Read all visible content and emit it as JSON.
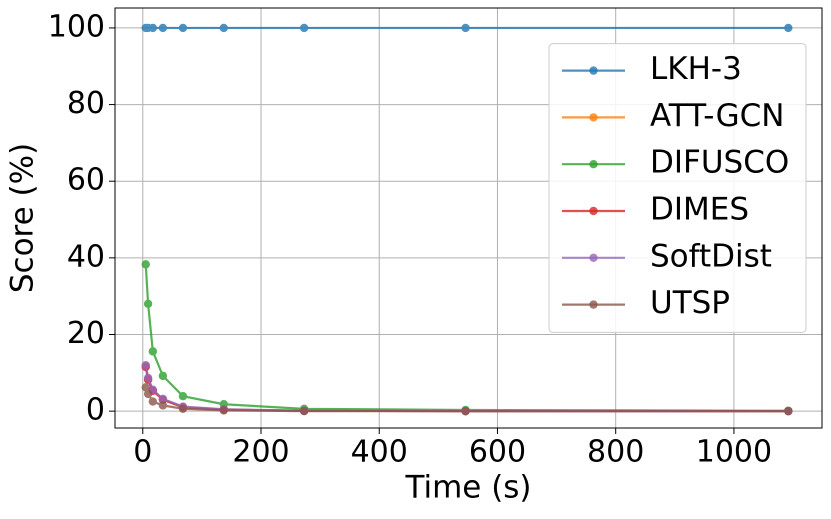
{
  "chart_data": {
    "type": "line",
    "xlabel": "Time (s)",
    "ylabel": "Score (%)",
    "x": [
      5,
      9,
      17,
      34,
      68,
      137,
      273,
      546,
      1092
    ],
    "series": [
      {
        "name": "LKH-3",
        "color": "#1f77b4",
        "values": [
          100,
          100,
          100,
          100,
          100,
          100,
          100,
          100,
          100
        ]
      },
      {
        "name": "ATT-GCN",
        "color": "#ff7f0e",
        "values": [
          11.8,
          8.4,
          5.4,
          3.0,
          1.0,
          0.4,
          0.1,
          0,
          0
        ]
      },
      {
        "name": "DIFUSCO",
        "color": "#2ca02c",
        "values": [
          38.3,
          28,
          15.6,
          9.2,
          3.9,
          1.8,
          0.6,
          0.3,
          0.1
        ]
      },
      {
        "name": "DIMES",
        "color": "#d62728",
        "values": [
          11.5,
          8.2,
          5.3,
          3.0,
          1.0,
          0.4,
          0.1,
          0,
          0
        ]
      },
      {
        "name": "SoftDist",
        "color": "#9467bd",
        "values": [
          12,
          8.7,
          5.6,
          3.2,
          1.2,
          0.5,
          0.1,
          0,
          0
        ]
      },
      {
        "name": "UTSP",
        "color": "#8c564b",
        "values": [
          6.2,
          4.5,
          2.5,
          1.5,
          0.6,
          0.2,
          0,
          0,
          0
        ]
      }
    ],
    "xlim": [
      -47,
      1149
    ],
    "ylim": [
      -4.4,
      105.2
    ],
    "xticks": [
      0,
      200,
      400,
      600,
      800,
      1000
    ],
    "yticks": [
      0,
      20,
      40,
      60,
      80,
      100
    ],
    "grid": true,
    "legend": "right"
  }
}
